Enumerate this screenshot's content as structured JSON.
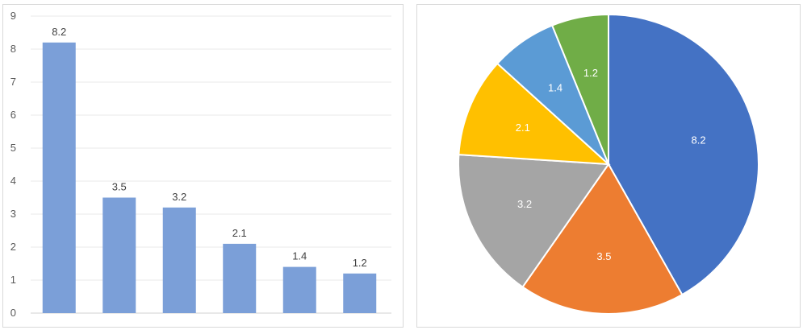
{
  "chart_data": [
    {
      "type": "bar",
      "categories": [
        "",
        "",
        "",
        "",
        "",
        ""
      ],
      "values": [
        8.2,
        3.5,
        3.2,
        2.1,
        1.4,
        1.2
      ],
      "data_labels": [
        "8.2",
        "3.5",
        "3.2",
        "2.1",
        "1.4",
        "1.2"
      ],
      "y_ticks": [
        "0",
        "1",
        "2",
        "3",
        "4",
        "5",
        "6",
        "7",
        "8",
        "9"
      ],
      "ylim": [
        0,
        9
      ],
      "grid": true,
      "legend": "none",
      "colors": {
        "bar": "#7b9fd8",
        "grid": "#e8e8e8",
        "axis": "#d0d0d0"
      }
    },
    {
      "type": "pie",
      "values": [
        8.2,
        3.5,
        3.2,
        2.1,
        1.4,
        1.2
      ],
      "data_labels": [
        "8.2",
        "3.5",
        "3.2",
        "2.1",
        "1.4",
        "1.2"
      ],
      "legend": "none",
      "colors": [
        "#4472c4",
        "#ed7d31",
        "#a5a5a5",
        "#ffc000",
        "#5b9bd5",
        "#70ad47"
      ]
    }
  ]
}
